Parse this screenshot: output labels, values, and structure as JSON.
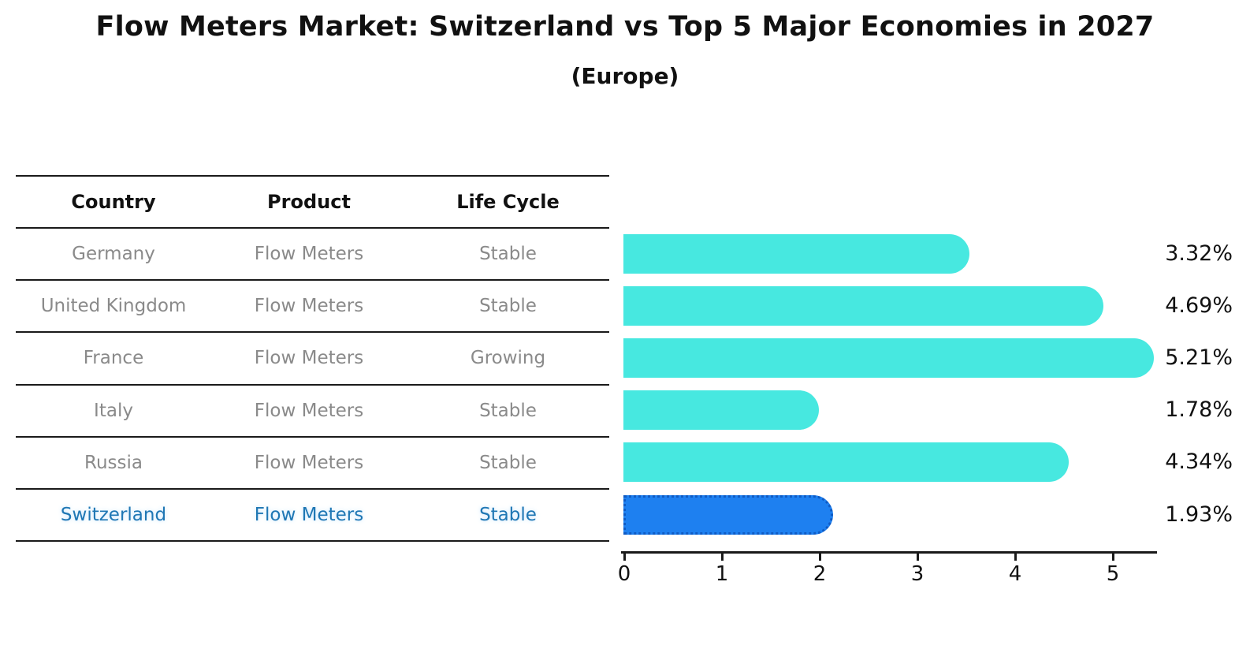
{
  "title": "Flow Meters Market: Switzerland vs Top 5 Major Economies in 2027",
  "subtitle": "(Europe)",
  "table": {
    "headers": [
      "Country",
      "Product",
      "Life Cycle"
    ],
    "rows": [
      {
        "country": "Germany",
        "product": "Flow Meters",
        "life_cycle": "Stable",
        "highlight": false
      },
      {
        "country": "United Kingdom",
        "product": "Flow Meters",
        "life_cycle": "Stable",
        "highlight": false
      },
      {
        "country": "France",
        "product": "Flow Meters",
        "life_cycle": "Growing",
        "highlight": false
      },
      {
        "country": "Italy",
        "product": "Flow Meters",
        "life_cycle": "Stable",
        "highlight": false
      },
      {
        "country": "Russia",
        "product": "Flow Meters",
        "life_cycle": "Stable",
        "highlight": true
      }
    ],
    "highlight_row": {
      "country": "Switzerland",
      "product": "Flow Meters",
      "life_cycle": "Stable"
    }
  },
  "chart_data": {
    "type": "bar",
    "orientation": "horizontal",
    "title": "Flow Meters Market: Switzerland vs Top 5 Major Economies in 2027 (Europe)",
    "categories": [
      "Germany",
      "United Kingdom",
      "France",
      "Italy",
      "Russia",
      "Switzerland"
    ],
    "values": [
      3.32,
      4.69,
      5.21,
      1.78,
      4.34,
      1.93
    ],
    "value_labels": [
      "3.32%",
      "4.69%",
      "5.21%",
      "1.78%",
      "4.34%",
      "1.93%"
    ],
    "highlight_index": 5,
    "xlabel": "",
    "ylabel": "",
    "xticks": [
      "0",
      "1",
      "2",
      "3",
      "4",
      "5"
    ],
    "xlim": [
      0,
      5.48
    ],
    "grid": false,
    "legend": "none"
  },
  "colors": {
    "bar": "#47e8e0",
    "highlight_bar": "#1e80f0",
    "highlight_bar_border": "#0f5bc4",
    "row_text": "#8a8a8a",
    "highlight_text": "#1f77b4",
    "header_text": "#111111",
    "axis": "#1a1a1a"
  }
}
